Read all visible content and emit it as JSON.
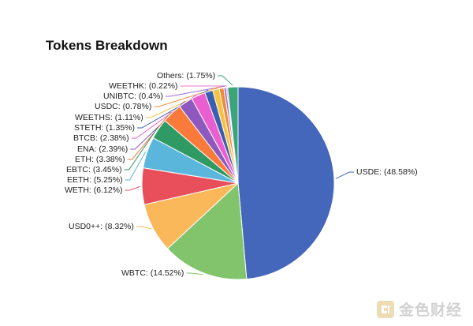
{
  "chart_data": {
    "type": "pie",
    "title": "Tokens Breakdown",
    "slices": [
      {
        "name": "USDE",
        "label": "USDE: (48.58%)",
        "value": 48.58,
        "color": "#4466bb"
      },
      {
        "name": "WBTC",
        "label": "WBTC: (14.52%)",
        "value": 14.52,
        "color": "#82c46c"
      },
      {
        "name": "USD0++",
        "label": "USD0++: (8.32%)",
        "value": 8.32,
        "color": "#fbb85a"
      },
      {
        "name": "WETH",
        "label": "WETH: (6.12%)",
        "value": 6.12,
        "color": "#e84f5b"
      },
      {
        "name": "EETH",
        "label": "EETH: (5.25%)",
        "value": 5.25,
        "color": "#5bb6dc"
      },
      {
        "name": "EBTC",
        "label": "EBTC: (3.45%)",
        "value": 3.45,
        "color": "#2f9a63"
      },
      {
        "name": "ETH",
        "label": "ETH: (3.38%)",
        "value": 3.38,
        "color": "#fa7a3c"
      },
      {
        "name": "ENA",
        "label": "ENA: (2.39%)",
        "value": 2.39,
        "color": "#8d59bf"
      },
      {
        "name": "BTCB",
        "label": "BTCB: (2.38%)",
        "value": 2.38,
        "color": "#ea5fd0"
      },
      {
        "name": "STETH",
        "label": "STETH: (1.35%)",
        "value": 1.35,
        "color": "#3b5fb0"
      },
      {
        "name": "WEETHS",
        "label": "WEETHS: (1.11%)",
        "value": 1.11,
        "color": "#f5c242"
      },
      {
        "name": "USDC",
        "label": "USDC: (0.78%)",
        "value": 0.78,
        "color": "#f08a3a"
      },
      {
        "name": "UNIBTC",
        "label": "UNIBTC: (0.4%)",
        "value": 0.4,
        "color": "#9b6fd6"
      },
      {
        "name": "WEETHK",
        "label": "WEETHK: (0.22%)",
        "value": 0.22,
        "color": "#e879c8"
      },
      {
        "name": "Others",
        "label": "Others: (1.75%)",
        "value": 1.75,
        "color": "#3aa57a"
      }
    ]
  },
  "watermark": {
    "text": "金色财经"
  }
}
